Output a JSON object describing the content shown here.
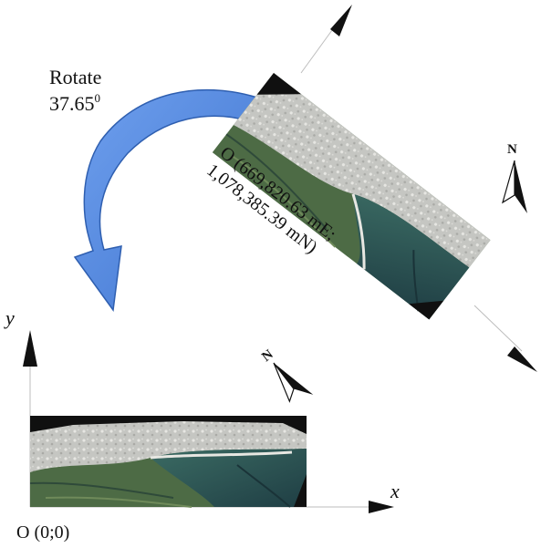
{
  "labels": {
    "rotate_word": "Rotate",
    "rotate_angle": "37.65",
    "rotate_degree_mark": "0",
    "origin_rotated_line1": "O (669,820.63 mE;",
    "origin_rotated_line2": "1,078,385.39 mN)",
    "origin_local": "O (0;0)",
    "axis_x": "x",
    "axis_y": "y",
    "north_label": "N"
  },
  "colors": {
    "arrow_fill": "#4f86e0",
    "arrow_stroke": "#2f5fb0",
    "axis_line": "#bdbdbd",
    "axis_head": "#111111",
    "water": "#2d5552",
    "land": "#4e6e46",
    "sand": "#c8c8c4",
    "nodata": "#101010"
  },
  "icons": {
    "rotation_arrow": "curved-arrow-icon",
    "north_arrow": "north-arrow-icon"
  }
}
